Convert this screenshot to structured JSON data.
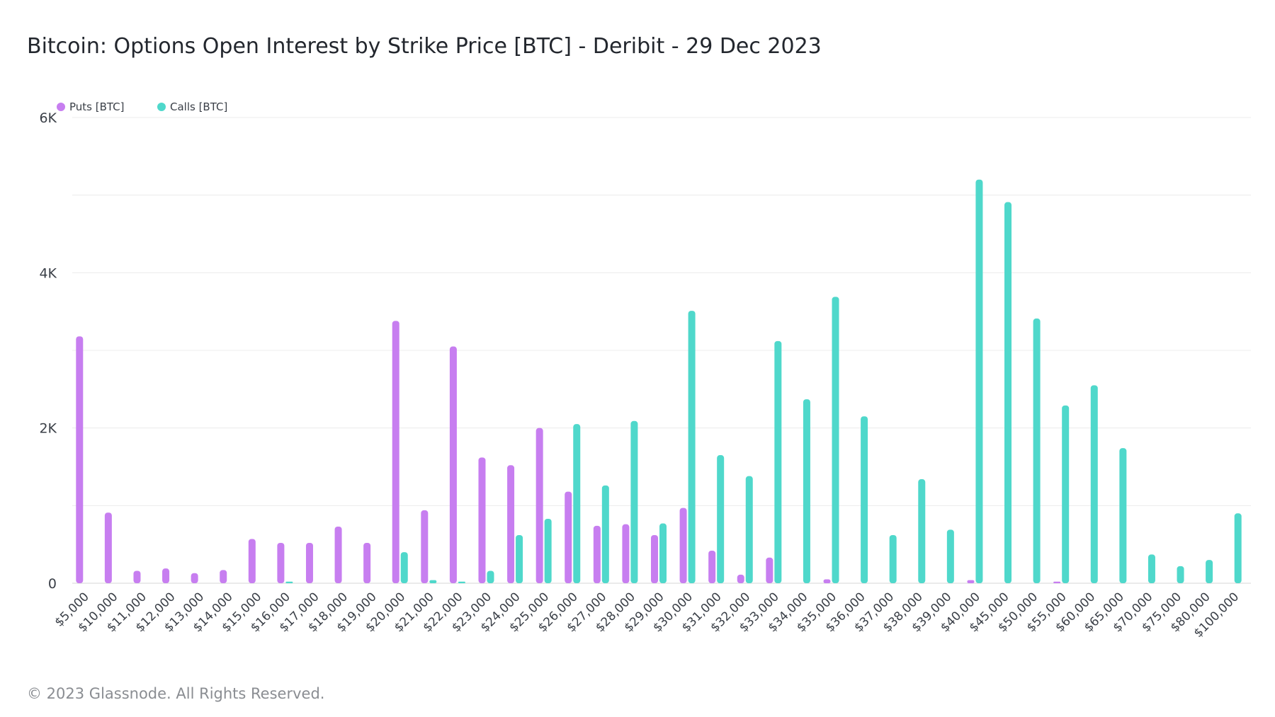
{
  "chart_data": {
    "type": "bar",
    "title": "Bitcoin: Options Open Interest by Strike Price [BTC] - Deribit - 29 Dec 2023",
    "xlabel": "",
    "ylabel": "",
    "ylim": [
      0,
      6000
    ],
    "yticks": [
      0,
      2000,
      4000,
      6000
    ],
    "ytick_labels": [
      "0",
      "2K",
      "4K",
      "6K"
    ],
    "grid": true,
    "legend_position": "top-left",
    "categories": [
      "$5,000",
      "$10,000",
      "$11,000",
      "$12,000",
      "$13,000",
      "$14,000",
      "$15,000",
      "$16,000",
      "$17,000",
      "$18,000",
      "$19,000",
      "$20,000",
      "$21,000",
      "$22,000",
      "$23,000",
      "$24,000",
      "$25,000",
      "$26,000",
      "$27,000",
      "$28,000",
      "$29,000",
      "$30,000",
      "$31,000",
      "$32,000",
      "$33,000",
      "$34,000",
      "$35,000",
      "$36,000",
      "$37,000",
      "$38,000",
      "$39,000",
      "$40,000",
      "$45,000",
      "$50,000",
      "$55,000",
      "$60,000",
      "$65,000",
      "$70,000",
      "$75,000",
      "$80,000",
      "$100,000"
    ],
    "series": [
      {
        "name": "Puts [BTC]",
        "color": "#c77ef0",
        "values": [
          3180,
          910,
          160,
          190,
          130,
          170,
          570,
          520,
          520,
          730,
          520,
          3380,
          940,
          3050,
          1620,
          1520,
          2000,
          1180,
          740,
          760,
          620,
          970,
          420,
          110,
          330,
          0,
          50,
          0,
          0,
          0,
          0,
          40,
          0,
          0,
          20,
          0,
          0,
          0,
          0,
          0,
          0
        ]
      },
      {
        "name": "Calls [BTC]",
        "color": "#4fd8cb",
        "values": [
          0,
          0,
          0,
          0,
          0,
          0,
          0,
          20,
          0,
          0,
          0,
          400,
          40,
          20,
          160,
          620,
          830,
          2050,
          1260,
          2090,
          770,
          3510,
          1650,
          1380,
          3120,
          2370,
          3690,
          2150,
          620,
          1340,
          690,
          5200,
          4910,
          3410,
          2290,
          2550,
          1740,
          370,
          220,
          300,
          900
        ]
      }
    ]
  },
  "footer": "© 2023 Glassnode. All Rights Reserved."
}
